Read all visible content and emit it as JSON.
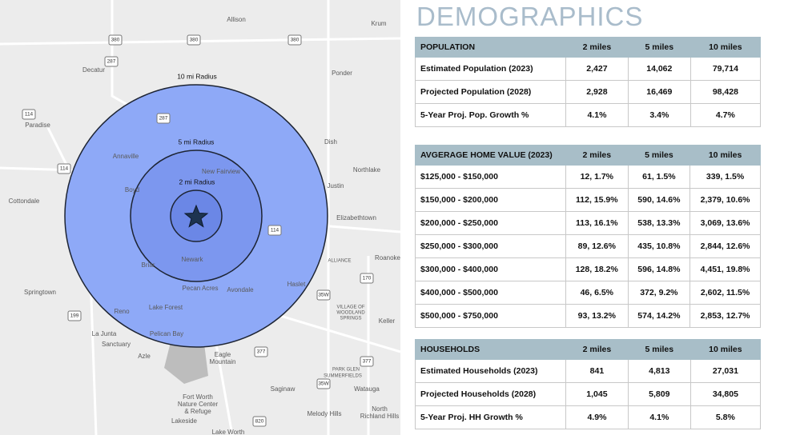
{
  "header": {
    "title": "DEMOGRAPHICS"
  },
  "map": {
    "radius_labels": [
      "10 mi Radius",
      "5 mi Radius",
      "2 mi Radius"
    ],
    "places": [
      "Allison",
      "Krum",
      "Decatur",
      "Ponder",
      "Paradise",
      "Dish",
      "Annaville",
      "Northlake",
      "Justin",
      "Boyd",
      "New Fairview",
      "Cottondale",
      "Elizabethtown",
      "Roanoke",
      "ALLIANCE",
      "Newark",
      "Briar",
      "Pecan Acres",
      "Haslet",
      "Avondale",
      "Springtown",
      "Lake Forest",
      "Reno",
      "VILLAGE OF",
      "WOODLAND",
      "SPRINGS",
      "Keller",
      "Pelican Bay",
      "La Junta",
      "Sanctuary",
      "Azle",
      "Eagle",
      "Mountain",
      "PARK GLEN",
      "SUMMERFIELDS",
      "Saginaw",
      "Watauga",
      "Fort Worth",
      "Nature Center",
      "& Refuge",
      "Lakeside",
      "Melody Hills",
      "North",
      "Richland Hills",
      "Lake Worth"
    ],
    "roads": [
      "380",
      "380",
      "380",
      "287",
      "114",
      "287",
      "114",
      "114",
      "35W",
      "170",
      "377",
      "199",
      "820",
      "35W",
      "377"
    ]
  },
  "tables": [
    {
      "columns": [
        "POPULATION",
        "2 miles",
        "5 miles",
        "10 miles"
      ],
      "rows": [
        [
          "Estimated Population (2023)",
          "2,427",
          "14,062",
          "79,714"
        ],
        [
          "Projected Population (2028)",
          "2,928",
          "16,469",
          "98,428"
        ],
        [
          "5-Year Proj. Pop. Growth %",
          "4.1%",
          "3.4%",
          "4.7%"
        ]
      ]
    },
    {
      "columns": [
        "AVGERAGE HOME VALUE (2023)",
        "2 miles",
        "5 miles",
        "10 miles"
      ],
      "rows": [
        [
          "$125,000 - $150,000",
          "12, 1.7%",
          "61, 1.5%",
          "339, 1.5%"
        ],
        [
          "$150,000 - $200,000",
          "112, 15.9%",
          "590, 14.6%",
          "2,379, 10.6%"
        ],
        [
          "$200,000 - $250,000",
          "113, 16.1%",
          "538, 13.3%",
          "3,069, 13.6%"
        ],
        [
          "$250,000 - $300,000",
          "89, 12.6%",
          "435, 10.8%",
          "2,844, 12.6%"
        ],
        [
          "$300,000 - $400,000",
          "128, 18.2%",
          "596, 14.8%",
          "4,451, 19.8%"
        ],
        [
          "$400,000 - $500,000",
          "46, 6.5%",
          "372, 9.2%",
          "2,602, 11.5%"
        ],
        [
          "$500,000 - $750,000",
          "93, 13.2%",
          "574, 14.2%",
          "2,853, 12.7%"
        ]
      ]
    },
    {
      "columns": [
        "HOUSEHOLDS",
        "2 miles",
        "5 miles",
        "10 miles"
      ],
      "rows": [
        [
          "Estimated Households (2023)",
          "841",
          "4,813",
          "27,031"
        ],
        [
          "Projected Households (2028)",
          "1,045",
          "5,809",
          "34,805"
        ],
        [
          "5-Year Proj. HH Growth %",
          "4.9%",
          "4.1%",
          "5.8%"
        ]
      ]
    }
  ]
}
